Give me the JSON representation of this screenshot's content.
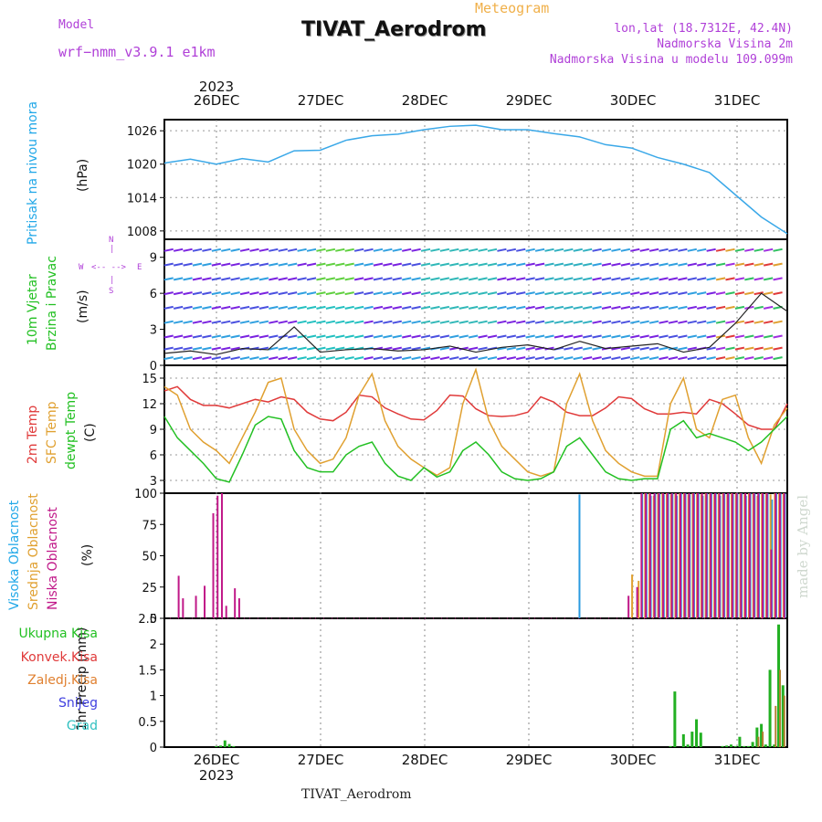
{
  "header": {
    "model_label": "Model",
    "model_value": "wrf−nmm_v3.9.1  e1km",
    "title": "TIVAT_Aerodrom",
    "subtitle": "Meteogram",
    "lonlat": "lon,lat (18.7312E, 42.4N)",
    "elevation": "Nadmorska Visina 2m",
    "model_elevation": "Nadmorska Visina u modelu 109.099m"
  },
  "time_axis": {
    "year": "2023",
    "days": [
      "26DEC",
      "27DEC",
      "28DEC",
      "29DEC",
      "30DEC",
      "31DEC"
    ]
  },
  "footer": "TIVAT_Aerodrom",
  "watermark": "made by Angel",
  "colors": {
    "pressure": "#3aa8e8",
    "wind_speed": "#222222",
    "temp2m": "#e03a3a",
    "sfc_temp": "#e0a030",
    "dewpt": "#22c022",
    "high_cloud": "#2a9ae0",
    "mid_cloud": "#e0a030",
    "low_cloud": "#c01888",
    "total_precip": "#22b022",
    "conv_precip": "#e03a3a",
    "frozen": "#e08030",
    "snow": "#4040e0",
    "graupel": "#30c0c0"
  },
  "chart_data": [
    {
      "type": "line",
      "panel": "pressure",
      "ylabel_color": "Pritisak na nivou mora",
      "ylabel_unit": "(hPa)",
      "yticks": [
        "1008",
        "1014",
        "1020",
        "1026"
      ],
      "ylim": [
        1006.5,
        1028
      ],
      "grid": true,
      "series": [
        {
          "x": [
            0,
            6,
            12,
            18,
            24,
            30,
            36,
            42,
            48,
            54,
            60,
            66,
            72,
            78,
            84,
            90,
            96,
            102,
            108,
            114,
            120,
            126,
            132,
            138,
            144
          ],
          "values": [
            1020.2,
            1020.9,
            1020.0,
            1021.0,
            1020.4,
            1022.4,
            1022.5,
            1024.3,
            1025.1,
            1025.4,
            1026.2,
            1026.8,
            1027.0,
            1026.2,
            1026.2,
            1025.5,
            1024.9,
            1023.5,
            1022.9,
            1021.2,
            1020.0,
            1018.5,
            1014.5,
            1010.5,
            1007.5
          ]
        }
      ]
    },
    {
      "type": "line",
      "panel": "wind",
      "ylabel_colored_1": "10m Vjetar",
      "ylabel_colored_2": "Brzina i Pravac",
      "ylabel_unit": "(m/s)",
      "compass": {
        "n": "N",
        "s": "S",
        "w": "W",
        "e": "E"
      },
      "yticks": [
        "0",
        "3",
        "6",
        "9"
      ],
      "ylim": [
        0,
        10.5
      ],
      "series": [
        {
          "x": [
            0,
            6,
            12,
            18,
            24,
            30,
            36,
            42,
            48,
            54,
            60,
            66,
            72,
            78,
            84,
            90,
            96,
            102,
            108,
            114,
            120,
            126,
            132,
            138,
            144
          ],
          "values": [
            1.0,
            1.2,
            0.9,
            1.4,
            1.3,
            3.2,
            1.1,
            1.3,
            1.4,
            1.2,
            1.3,
            1.6,
            1.1,
            1.5,
            1.7,
            1.3,
            2.0,
            1.4,
            1.6,
            1.8,
            1.1,
            1.5,
            3.5,
            6.0,
            4.5
          ]
        }
      ]
    },
    {
      "type": "line",
      "panel": "temperature",
      "ylabel_1": "2m Temp",
      "ylabel_2": "SFC Temp",
      "ylabel_3": "dewpt Temp",
      "ylabel_unit": "(C)",
      "yticks": [
        "3",
        "6",
        "9",
        "12",
        "15"
      ],
      "ylim": [
        1.5,
        16.5
      ],
      "series": [
        {
          "x": [
            0,
            3,
            6,
            9,
            12,
            15,
            18,
            21,
            24,
            27,
            30,
            33,
            36,
            39,
            42,
            45,
            48,
            51,
            54,
            57,
            60,
            63,
            66,
            69,
            72,
            75,
            78,
            81,
            84,
            87,
            90,
            93,
            96,
            99,
            102,
            105,
            108,
            111,
            114,
            117,
            120,
            123,
            126,
            129,
            132,
            135,
            138,
            141,
            144
          ],
          "values": [
            13.5,
            14.0,
            12.5,
            11.8,
            11.8,
            11.5,
            12.0,
            12.5,
            12.2,
            12.8,
            12.5,
            11.0,
            10.2,
            10.0,
            11.0,
            13.0,
            12.8,
            11.5,
            10.8,
            10.2,
            10.1,
            11.2,
            13.0,
            12.9,
            11.4,
            10.6,
            10.5,
            10.6,
            11.0,
            12.8,
            12.2,
            11.0,
            10.6,
            10.6,
            11.5,
            12.8,
            12.6,
            11.4,
            10.8,
            10.8,
            11.0,
            10.8,
            12.5,
            12.0,
            10.8,
            9.5,
            9.0,
            9.0,
            12.0
          ]
        },
        {
          "x": [
            0,
            3,
            6,
            9,
            12,
            15,
            18,
            21,
            24,
            27,
            30,
            33,
            36,
            39,
            42,
            45,
            48,
            51,
            54,
            57,
            60,
            63,
            66,
            69,
            72,
            75,
            78,
            81,
            84,
            87,
            90,
            93,
            96,
            99,
            102,
            105,
            108,
            111,
            114,
            117,
            120,
            123,
            126,
            129,
            132,
            135,
            138,
            141,
            144
          ],
          "values": [
            14.0,
            13.0,
            9.0,
            7.5,
            6.5,
            5.0,
            8.0,
            11.0,
            14.5,
            15.0,
            9.0,
            6.5,
            5.0,
            5.5,
            8.0,
            13.0,
            15.5,
            10.0,
            7.0,
            5.5,
            4.5,
            3.6,
            4.5,
            12.0,
            16.0,
            10.0,
            7.0,
            5.5,
            4.0,
            3.5,
            4.0,
            12.0,
            15.5,
            10.0,
            6.5,
            5.0,
            4.0,
            3.5,
            3.5,
            12.0,
            15.0,
            9.0,
            8.0,
            12.5,
            13.0,
            8.0,
            5.0,
            9.5,
            11.5
          ]
        },
        {
          "x": [
            0,
            3,
            6,
            9,
            12,
            15,
            18,
            21,
            24,
            27,
            30,
            33,
            36,
            39,
            42,
            45,
            48,
            51,
            54,
            57,
            60,
            63,
            66,
            69,
            72,
            75,
            78,
            81,
            84,
            87,
            90,
            93,
            96,
            99,
            102,
            105,
            108,
            111,
            114,
            117,
            120,
            123,
            126,
            129,
            132,
            135,
            138,
            141,
            144
          ],
          "values": [
            10.5,
            8.0,
            6.5,
            5.0,
            3.2,
            2.8,
            6.0,
            9.5,
            10.5,
            10.2,
            6.5,
            4.5,
            4.0,
            4.0,
            6.0,
            7.0,
            7.5,
            5.0,
            3.5,
            3.0,
            4.5,
            3.4,
            4.0,
            6.5,
            7.5,
            6.0,
            4.0,
            3.2,
            3.0,
            3.2,
            4.0,
            7.0,
            8.0,
            6.0,
            4.0,
            3.2,
            3.0,
            3.2,
            3.2,
            9.0,
            10.0,
            8.0,
            8.5,
            8.0,
            7.5,
            6.5,
            7.5,
            9.0,
            10.5
          ]
        }
      ]
    },
    {
      "type": "bar",
      "panel": "cloud",
      "ylabel_1": "Visoka Oblacnost",
      "ylabel_2": "Srednja Oblacnost",
      "ylabel_3": "Niska Oblacnost",
      "ylabel_unit": "(%)",
      "yticks": [
        "0",
        "25",
        "50",
        "75",
        "100"
      ],
      "ylim": [
        0,
        100
      ],
      "series": [
        {
          "x": [
            96,
            110.5,
            111.5,
            112.5,
            113.5,
            114.5,
            115.5,
            116.5,
            117.5,
            118.5,
            119.5,
            120.5,
            121.5,
            122.5,
            123.5,
            124.5,
            125.5,
            126.5,
            127.5,
            128.5,
            129.5,
            130.5,
            131.5,
            132.5,
            133.5,
            134.5,
            135.5,
            136.5,
            137.5,
            138.5,
            139.5,
            140.5,
            141.5,
            142.5,
            143.5
          ],
          "values": [
            99,
            100,
            100,
            98,
            100,
            100,
            99,
            100,
            100,
            98,
            100,
            100,
            99,
            100,
            100,
            98,
            100,
            100,
            100,
            98,
            100,
            100,
            99,
            100,
            100,
            98,
            100,
            100,
            100,
            99,
            100,
            95,
            100,
            100,
            100
          ]
        },
        {
          "x": [
            108,
            109.5,
            111,
            112,
            113,
            114,
            115,
            116,
            117,
            118,
            119,
            120,
            121,
            122,
            123,
            124,
            125,
            126,
            127,
            128,
            129,
            130,
            131,
            132,
            133,
            134,
            135,
            136,
            137,
            138,
            139,
            140,
            141,
            142,
            143
          ],
          "values": [
            35,
            30,
            100,
            100,
            98,
            100,
            100,
            100,
            99,
            100,
            100,
            100,
            99,
            100,
            100,
            99,
            100,
            100,
            99,
            100,
            100,
            99,
            100,
            100,
            100,
            99,
            100,
            100,
            98,
            100,
            100,
            99,
            100,
            100,
            100
          ]
        },
        {
          "x": [
            3,
            4,
            7,
            9,
            11,
            12,
            13,
            14,
            16,
            17,
            107,
            109,
            110,
            111,
            112,
            113,
            114,
            115,
            116,
            117,
            118,
            119,
            120,
            121,
            122,
            123,
            124,
            125,
            126,
            127,
            128,
            129,
            130,
            131,
            132,
            133,
            134,
            135,
            136,
            137,
            138,
            139,
            140,
            141,
            142,
            143
          ],
          "values": [
            34,
            16,
            18,
            26,
            84,
            98,
            100,
            10,
            24,
            16,
            18,
            25,
            100,
            100,
            100,
            100,
            100,
            100,
            100,
            100,
            100,
            100,
            100,
            100,
            100,
            100,
            100,
            100,
            100,
            100,
            100,
            100,
            100,
            100,
            100,
            100,
            100,
            100,
            100,
            100,
            100,
            100,
            55,
            100,
            100,
            100
          ]
        }
      ]
    },
    {
      "type": "bar",
      "panel": "precipitation",
      "legend": [
        "Ukupna  Kisa",
        "Konvek.Kisa",
        "Zaledj.Kisa",
        "Snijeg",
        "Grad"
      ],
      "ylabel": "1hr Precip (mm)",
      "yticks": [
        "0",
        "0.5",
        "1",
        "1.5",
        "2",
        "2.5"
      ],
      "ylim": [
        0,
        2.5
      ],
      "series": [
        {
          "x": [
            12,
            13,
            14,
            15,
            16,
            117,
            118,
            120,
            121,
            122,
            123,
            124,
            129,
            130,
            131,
            132,
            133,
            134,
            135,
            136,
            137,
            138,
            139,
            140,
            141,
            142,
            143
          ],
          "values": [
            0.02,
            0.03,
            0.13,
            0.06,
            0.02,
            0.02,
            1.08,
            0.25,
            0.05,
            0.3,
            0.54,
            0.28,
            0.02,
            0.03,
            0.05,
            0.02,
            0.2,
            0.02,
            0.02,
            0.1,
            0.38,
            0.45,
            0.05,
            1.5,
            0.05,
            2.38,
            1.2
          ]
        },
        {
          "x": [
            137,
            138,
            141,
            142,
            143
          ],
          "values": [
            0.2,
            0.3,
            0.8,
            1.5,
            1.0
          ]
        }
      ]
    }
  ]
}
